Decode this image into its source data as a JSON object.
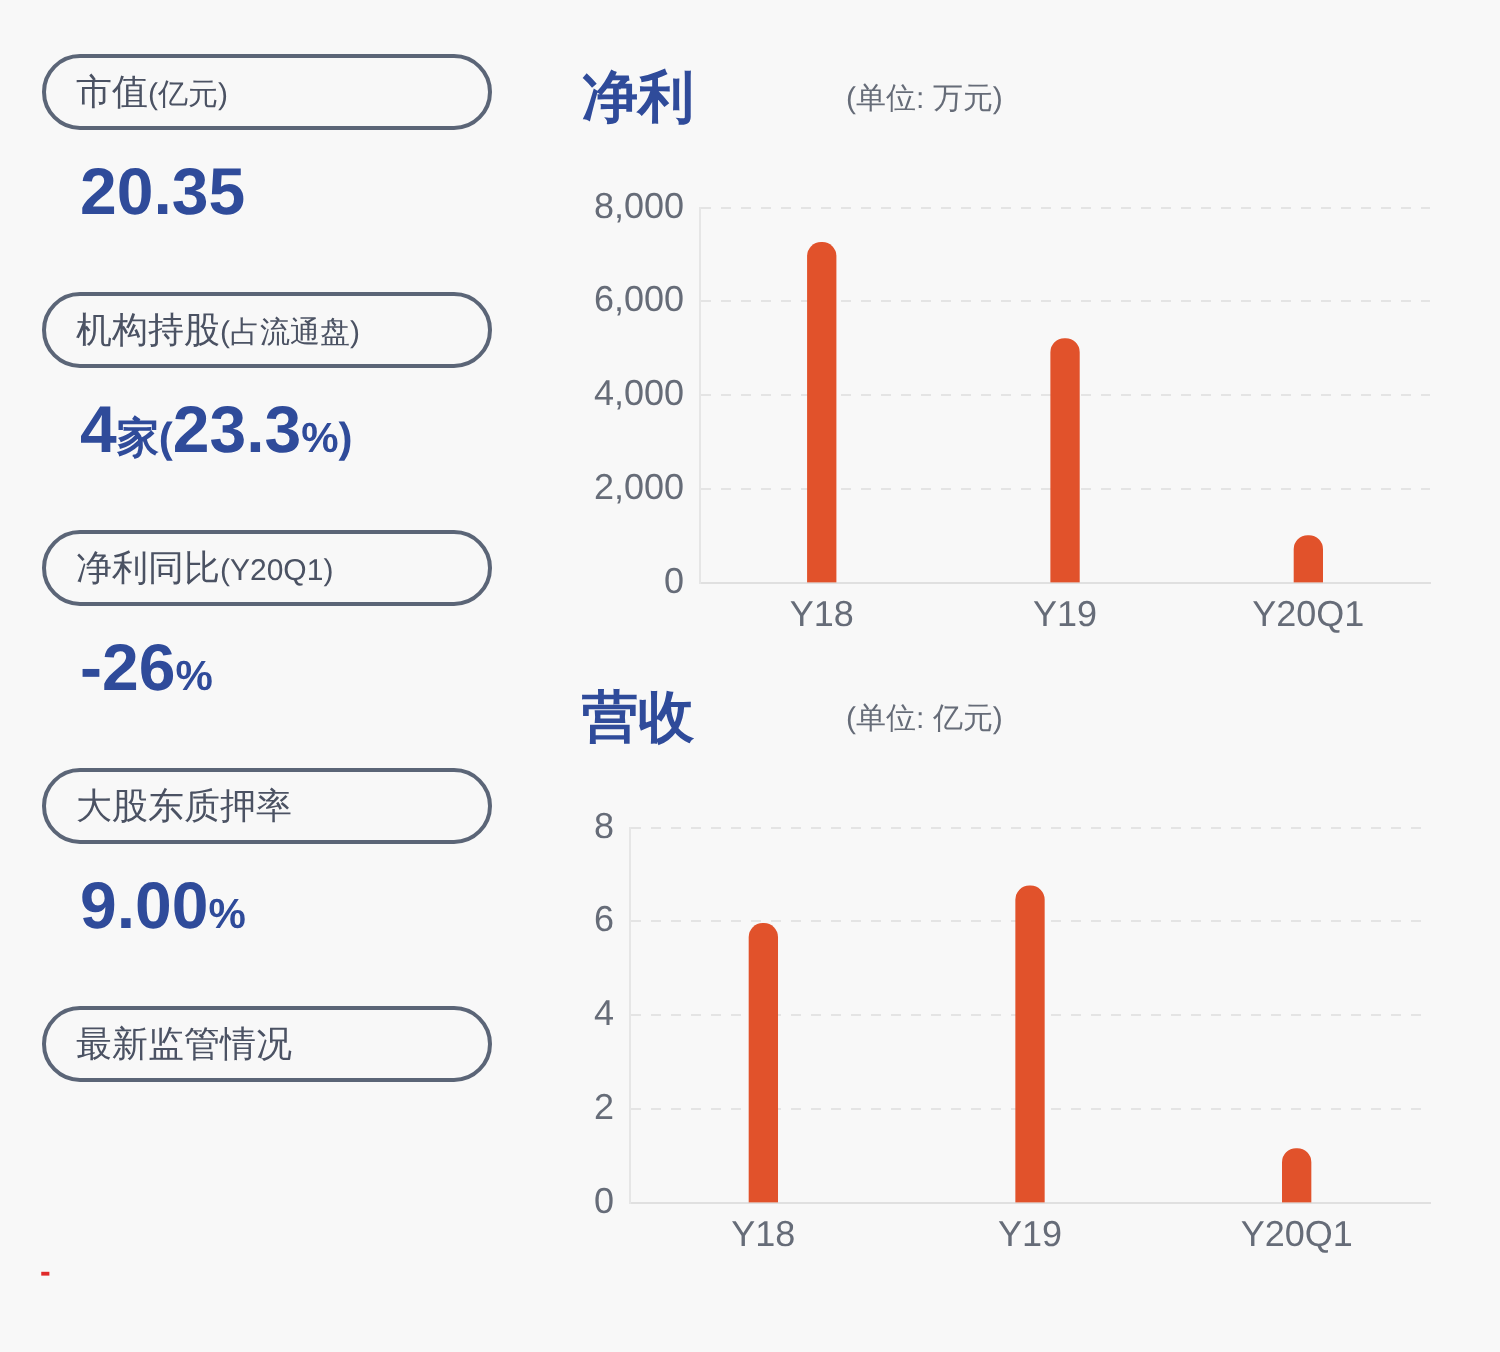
{
  "chart_data": [
    {
      "type": "other",
      "annotations": [
        "市值(亿元)",
        "20.35",
        "机构持股(占流通盘)",
        "4家(23.3%)",
        "净利同比(Y20Q1)",
        "-26%",
        "大股东质押率",
        "9.00%",
        "最新监管情况",
        "-"
      ]
    },
    {
      "type": "bar",
      "title": "净利",
      "subtitle": "(单位: 万元)",
      "categories": [
        "Y18",
        "Y19",
        "Y20Q1"
      ],
      "values": [
        7250,
        5200,
        1000
      ],
      "color": "#e1522b",
      "ylim": [
        0,
        8000
      ],
      "yticks": [
        0,
        {
          "value": 2000,
          "label": "2,000"
        },
        {
          "value": 4000,
          "label": "4,000"
        },
        {
          "value": 6000,
          "label": "6,000"
        },
        {
          "value": 8000,
          "label": "8,000"
        }
      ],
      "grid": "y"
    },
    {
      "type": "bar",
      "title": "营收",
      "subtitle": "(单位: 亿元)",
      "categories": [
        "Y18",
        "Y19",
        "Y20Q1"
      ],
      "values": [
        5.95,
        6.75,
        1.15
      ],
      "color": "#e1522b",
      "ylim": [
        0,
        8
      ],
      "yticks": [
        0,
        2,
        4,
        6,
        8
      ],
      "grid": "y"
    }
  ]
}
